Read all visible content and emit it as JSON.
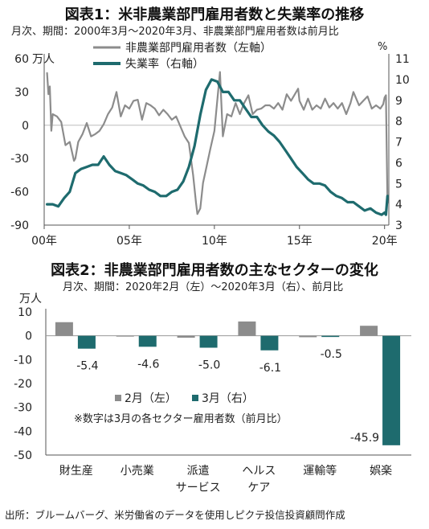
{
  "chart1_title": "図表1：米非農業部門雇用者数と失業率の推移",
  "chart1_subtitle": "月次、期間：2000年3月～2020年3月、非農業部門雇用者数は前月比",
  "chart2_title": "図表2：非農業部門雇用者数の主なセクターの変化",
  "chart2_subtitle": "月次、期間：2020年2月（左）～2020年3月（右）、前月比",
  "source": "出所：ブルームバーグ、米労働省のデータを使用しピクテ投信投資顧問作成",
  "colors": {
    "gray": "#8c8c8c",
    "teal": "#1e6b6e",
    "grid": "#e6e6e6",
    "axis": "#555555"
  },
  "chart_data": [
    {
      "type": "line",
      "title": "図表1：米非農業部門雇用者数と失業率の推移",
      "subtitle": "月次、期間：2000年3月～2020年3月、非農業部門雇用者数は前月比",
      "y_left_unit": "万人",
      "y_right_unit": "%",
      "y_left_ticks": [
        "60",
        "30",
        "0",
        "-30",
        "-60",
        "-90"
      ],
      "y_right_ticks": [
        "11",
        "10",
        "9",
        "8",
        "7",
        "6",
        "5",
        "4",
        "3"
      ],
      "x_ticks": [
        "00年",
        "05年",
        "10年",
        "15年",
        "20年"
      ],
      "ylim_left": [
        -90,
        60
      ],
      "ylim_right": [
        3,
        11
      ],
      "xlim": [
        2000.0,
        2020.25
      ],
      "legend_position": "top",
      "series": [
        {
          "name": "非農業部門雇用者数（左軸）",
          "axis": "left",
          "points": [
            [
              2000.17,
              47
            ],
            [
              2000.25,
              28
            ],
            [
              2000.33,
              35
            ],
            [
              2000.42,
              -5
            ],
            [
              2000.5,
              10
            ],
            [
              2000.75,
              8
            ],
            [
              2001.0,
              3
            ],
            [
              2001.25,
              -18
            ],
            [
              2001.5,
              -15
            ],
            [
              2001.75,
              -32
            ],
            [
              2001.83,
              -30
            ],
            [
              2002.0,
              -15
            ],
            [
              2002.25,
              -8
            ],
            [
              2002.5,
              2
            ],
            [
              2002.75,
              -10
            ],
            [
              2003.0,
              -8
            ],
            [
              2003.25,
              -5
            ],
            [
              2003.5,
              1
            ],
            [
              2003.75,
              10
            ],
            [
              2004.0,
              16
            ],
            [
              2004.25,
              30
            ],
            [
              2004.5,
              8
            ],
            [
              2004.75,
              18
            ],
            [
              2005.0,
              15
            ],
            [
              2005.25,
              22
            ],
            [
              2005.5,
              23
            ],
            [
              2005.75,
              5
            ],
            [
              2006.0,
              20
            ],
            [
              2006.25,
              18
            ],
            [
              2006.5,
              15
            ],
            [
              2006.75,
              9
            ],
            [
              2007.0,
              14
            ],
            [
              2007.25,
              10
            ],
            [
              2007.5,
              5
            ],
            [
              2007.75,
              8
            ],
            [
              2008.0,
              -1
            ],
            [
              2008.25,
              -10
            ],
            [
              2008.5,
              -16
            ],
            [
              2008.75,
              -45
            ],
            [
              2008.92,
              -70
            ],
            [
              2009.0,
              -80
            ],
            [
              2009.17,
              -75
            ],
            [
              2009.33,
              -52
            ],
            [
              2009.5,
              -40
            ],
            [
              2009.75,
              -22
            ],
            [
              2010.0,
              -5
            ],
            [
              2010.33,
              48
            ],
            [
              2010.5,
              -10
            ],
            [
              2010.75,
              10
            ],
            [
              2011.0,
              8
            ],
            [
              2011.25,
              20
            ],
            [
              2011.5,
              10
            ],
            [
              2011.75,
              20
            ],
            [
              2012.0,
              27
            ],
            [
              2012.25,
              10
            ],
            [
              2012.5,
              14
            ],
            [
              2012.75,
              15
            ],
            [
              2013.0,
              18
            ],
            [
              2013.25,
              18
            ],
            [
              2013.5,
              15
            ],
            [
              2013.75,
              20
            ],
            [
              2014.0,
              14
            ],
            [
              2014.25,
              28
            ],
            [
              2014.5,
              22
            ],
            [
              2014.92,
              33
            ],
            [
              2015.0,
              22
            ],
            [
              2015.25,
              14
            ],
            [
              2015.5,
              24
            ],
            [
              2015.75,
              14
            ],
            [
              2016.0,
              18
            ],
            [
              2016.25,
              15
            ],
            [
              2016.5,
              24
            ],
            [
              2016.75,
              16
            ],
            [
              2017.0,
              20
            ],
            [
              2017.25,
              15
            ],
            [
              2017.5,
              20
            ],
            [
              2017.75,
              10
            ],
            [
              2018.0,
              20
            ],
            [
              2018.17,
              30
            ],
            [
              2018.5,
              18
            ],
            [
              2018.75,
              22
            ],
            [
              2019.0,
              26
            ],
            [
              2019.25,
              15
            ],
            [
              2019.5,
              18
            ],
            [
              2019.75,
              15
            ],
            [
              2019.92,
              19
            ],
            [
              2020.0,
              25
            ],
            [
              2020.08,
              27
            ],
            [
              2020.17,
              -70
            ]
          ]
        },
        {
          "name": "失業率（右軸）",
          "axis": "right",
          "points": [
            [
              2000.17,
              4.0
            ],
            [
              2000.5,
              4.0
            ],
            [
              2000.83,
              3.9
            ],
            [
              2001.17,
              4.3
            ],
            [
              2001.5,
              4.6
            ],
            [
              2001.83,
              5.5
            ],
            [
              2002.17,
              5.7
            ],
            [
              2002.5,
              5.8
            ],
            [
              2002.83,
              5.9
            ],
            [
              2003.17,
              5.9
            ],
            [
              2003.5,
              6.3
            ],
            [
              2003.83,
              5.9
            ],
            [
              2004.17,
              5.6
            ],
            [
              2004.5,
              5.5
            ],
            [
              2004.83,
              5.4
            ],
            [
              2005.17,
              5.2
            ],
            [
              2005.5,
              5.0
            ],
            [
              2005.83,
              4.9
            ],
            [
              2006.17,
              4.7
            ],
            [
              2006.5,
              4.6
            ],
            [
              2006.83,
              4.4
            ],
            [
              2007.17,
              4.4
            ],
            [
              2007.5,
              4.6
            ],
            [
              2007.83,
              4.7
            ],
            [
              2008.17,
              5.1
            ],
            [
              2008.5,
              5.8
            ],
            [
              2008.83,
              6.8
            ],
            [
              2009.17,
              8.3
            ],
            [
              2009.5,
              9.5
            ],
            [
              2009.83,
              10.0
            ],
            [
              2010.17,
              9.9
            ],
            [
              2010.5,
              9.4
            ],
            [
              2010.83,
              9.4
            ],
            [
              2011.17,
              9.0
            ],
            [
              2011.5,
              9.0
            ],
            [
              2011.83,
              8.6
            ],
            [
              2012.17,
              8.2
            ],
            [
              2012.5,
              8.2
            ],
            [
              2012.83,
              7.8
            ],
            [
              2013.17,
              7.5
            ],
            [
              2013.5,
              7.3
            ],
            [
              2013.83,
              7.0
            ],
            [
              2014.17,
              6.6
            ],
            [
              2014.5,
              6.2
            ],
            [
              2014.83,
              5.8
            ],
            [
              2015.17,
              5.5
            ],
            [
              2015.5,
              5.2
            ],
            [
              2015.83,
              5.0
            ],
            [
              2016.17,
              5.0
            ],
            [
              2016.5,
              4.9
            ],
            [
              2016.83,
              4.6
            ],
            [
              2017.17,
              4.4
            ],
            [
              2017.5,
              4.3
            ],
            [
              2017.83,
              4.1
            ],
            [
              2018.17,
              4.1
            ],
            [
              2018.5,
              3.9
            ],
            [
              2018.83,
              3.7
            ],
            [
              2019.17,
              3.8
            ],
            [
              2019.5,
              3.6
            ],
            [
              2019.83,
              3.5
            ],
            [
              2020.0,
              3.6
            ],
            [
              2020.08,
              3.5
            ],
            [
              2020.17,
              4.4
            ]
          ]
        }
      ]
    },
    {
      "type": "bar",
      "title": "図表2：非農業部門雇用者数の主なセクターの変化",
      "subtitle": "月次、期間：2020年2月（左）～2020年3月（右）、前月比",
      "y_unit": "万人",
      "ylim": [
        -50,
        10
      ],
      "y_ticks": [
        "10",
        "0",
        "-10",
        "-20",
        "-30",
        "-40",
        "-50"
      ],
      "categories": [
        [
          "財生産"
        ],
        [
          "小売業"
        ],
        [
          "派遣",
          "サービス"
        ],
        [
          "ヘルス",
          "ケア"
        ],
        [
          "運輸等"
        ],
        [
          "娯楽"
        ]
      ],
      "series": [
        {
          "name": "2月（左）",
          "values": [
            5.7,
            -0.3,
            -0.8,
            6.0,
            -0.6,
            4.2
          ]
        },
        {
          "name": "3月（右）",
          "values": [
            -5.4,
            -4.6,
            -5.0,
            -6.1,
            -0.5,
            -45.9
          ]
        }
      ],
      "data_labels": [
        "-5.4",
        "-4.6",
        "-5.0",
        "-6.1",
        "-0.5",
        "-45.9"
      ],
      "annotation": "※数字は3月の各セクター雇用者数（前月比）",
      "legend_position": "middle"
    }
  ]
}
